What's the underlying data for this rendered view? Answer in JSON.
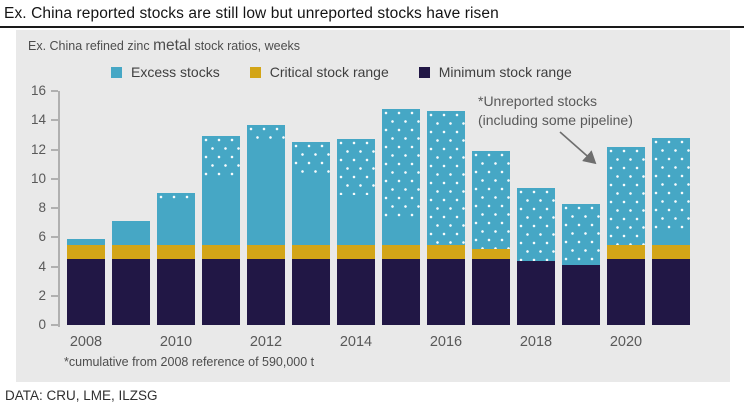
{
  "title": "Ex. China reported stocks are still low but unreported stocks have risen",
  "subtitle": {
    "prefix": "Ex. China refined zinc ",
    "emphasis": "metal",
    "suffix": " stock ratios, weeks"
  },
  "legend": [
    {
      "label": "Excess stocks",
      "color": "#46A7C5"
    },
    {
      "label": "Critical stock range",
      "color": "#D3A517"
    },
    {
      "label": "Minimum stock range",
      "color": "#211745"
    }
  ],
  "annotation": {
    "line1": "*Unreported stocks",
    "line2": "(including some pipeline)"
  },
  "footnote": "*cumulative from 2008 reference of 590,000 t",
  "source": "DATA: CRU, LME, ILZSG",
  "colors": {
    "excess": "#46A7C5",
    "critical": "#D3A517",
    "minimum": "#211745",
    "panel_bg": "#E9E9E9",
    "axis": "#B0B0B0",
    "text_gray": "#595959"
  },
  "chart_data": {
    "type": "bar",
    "stacked": true,
    "title": "Ex. China refined zinc metal stock ratios, weeks",
    "categories": [
      "2008",
      "2009",
      "2010",
      "2011",
      "2012",
      "2013",
      "2014",
      "2015",
      "2016",
      "2017",
      "2018",
      "2019",
      "2020",
      "2021"
    ],
    "x_tick_labels": [
      "2008",
      "2010",
      "2012",
      "2014",
      "2016",
      "2018",
      "2020"
    ],
    "series": [
      {
        "name": "Minimum stock range",
        "color": "#211745",
        "values": [
          4.5,
          4.5,
          4.5,
          4.5,
          4.5,
          4.5,
          4.5,
          4.5,
          4.5,
          4.5,
          4.4,
          4.1,
          4.5,
          4.5
        ]
      },
      {
        "name": "Critical stock range",
        "color": "#D3A517",
        "values": [
          1.0,
          1.0,
          1.0,
          1.0,
          1.0,
          1.0,
          1.0,
          1.0,
          1.0,
          0.7,
          0.0,
          0.0,
          1.0,
          1.0
        ]
      },
      {
        "name": "Excess stocks",
        "color": "#46A7C5",
        "values": [
          0.4,
          1.6,
          3.5,
          7.4,
          8.2,
          7.0,
          7.2,
          9.3,
          9.1,
          6.7,
          5.0,
          4.2,
          6.7,
          7.3
        ]
      }
    ],
    "totals": [
      5.9,
      7.1,
      9.0,
      12.9,
      13.7,
      12.5,
      12.7,
      14.8,
      14.6,
      11.9,
      9.4,
      8.3,
      12.2,
      12.8
    ],
    "unreported_dots_from": [
      null,
      null,
      8.5,
      9.9,
      12.5,
      10.4,
      8.9,
      7.2,
      5.5,
      5.2,
      4.4,
      4.1,
      5.5,
      6.2
    ],
    "ylim": [
      0,
      16
    ],
    "yticks": [
      0,
      2,
      4,
      6,
      8,
      10,
      12,
      14,
      16
    ],
    "legend_position": "top",
    "grid": false
  }
}
